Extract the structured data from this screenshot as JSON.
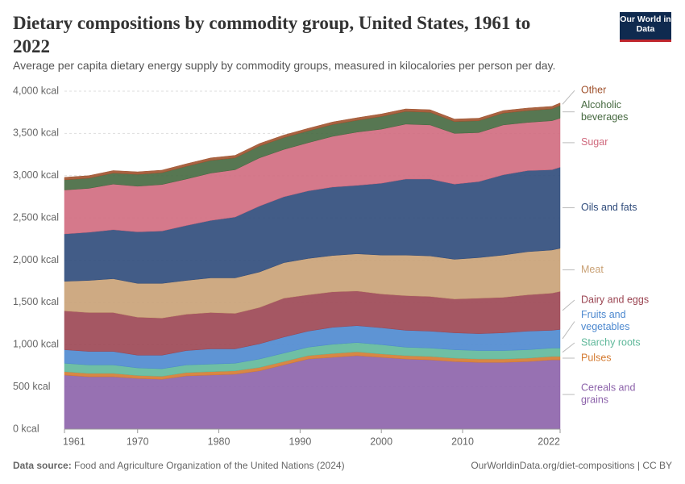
{
  "chart_data": {
    "type": "stacked-area",
    "title": "Dietary compositions by commodity group, United States, 1961 to 2022",
    "subtitle": "Average per capita dietary energy supply by commodity groups, measured in kilocalories per person per day.",
    "logo": "Our World in Data",
    "source_label": "Data source:",
    "source": "Food and Agriculture Organization of the United Nations (2024)",
    "url": "OurWorldinData.org/diet-compositions | CC BY",
    "x": [
      1961,
      1964,
      1967,
      1970,
      1973,
      1976,
      1979,
      1982,
      1985,
      1988,
      1991,
      1994,
      1997,
      2000,
      2003,
      2006,
      2009,
      2012,
      2015,
      2018,
      2021,
      2022
    ],
    "xlim": [
      1961,
      2022
    ],
    "xticks": [
      1961,
      1970,
      1980,
      1990,
      2000,
      2010,
      2022
    ],
    "ylim": [
      0,
      4000
    ],
    "yticks": [
      {
        "value": 0,
        "label": "0 kcal"
      },
      {
        "value": 500,
        "label": "500 kcal"
      },
      {
        "value": 1000,
        "label": "1,000 kcal"
      },
      {
        "value": 1500,
        "label": "1,500 kcal"
      },
      {
        "value": 2000,
        "label": "2,000 kcal"
      },
      {
        "value": 2500,
        "label": "2,500 kcal"
      },
      {
        "value": 3000,
        "label": "3,000 kcal"
      },
      {
        "value": 3500,
        "label": "3,500 kcal"
      },
      {
        "value": 4000,
        "label": "4,000 kcal"
      }
    ],
    "grid": true,
    "series": [
      {
        "name": "Cereals and grains",
        "color": "#8c62aa",
        "values": [
          640,
          620,
          620,
          600,
          590,
          630,
          640,
          650,
          690,
          760,
          830,
          850,
          870,
          850,
          830,
          820,
          800,
          790,
          790,
          800,
          820,
          820
        ]
      },
      {
        "name": "Pulses",
        "color": "#d47a30",
        "values": [
          40,
          40,
          40,
          35,
          35,
          40,
          40,
          40,
          40,
          40,
          40,
          45,
          45,
          40,
          40,
          40,
          40,
          40,
          40,
          40,
          40,
          40
        ]
      },
      {
        "name": "Starchy roots",
        "color": "#5fb89a",
        "values": [
          100,
          100,
          100,
          90,
          90,
          90,
          90,
          90,
          100,
          100,
          100,
          110,
          110,
          110,
          100,
          100,
          100,
          100,
          100,
          100,
          100,
          100
        ]
      },
      {
        "name": "Fruits and vegetables",
        "color": "#4c88cf",
        "values": [
          160,
          160,
          160,
          150,
          160,
          170,
          180,
          170,
          180,
          190,
          190,
          200,
          200,
          200,
          200,
          200,
          200,
          200,
          210,
          220,
          210,
          220
        ]
      },
      {
        "name": "Dairy and eggs",
        "color": "#9b4552",
        "values": [
          460,
          460,
          460,
          450,
          440,
          430,
          430,
          420,
          430,
          460,
          430,
          420,
          410,
          400,
          410,
          410,
          400,
          420,
          420,
          430,
          440,
          450
        ]
      },
      {
        "name": "Meat",
        "color": "#c9a175",
        "values": [
          350,
          380,
          400,
          400,
          410,
          400,
          410,
          420,
          420,
          420,
          430,
          430,
          440,
          460,
          480,
          480,
          470,
          480,
          500,
          510,
          510,
          510
        ]
      },
      {
        "name": "Oils and fats",
        "color": "#2e4a7a",
        "values": [
          560,
          570,
          580,
          610,
          620,
          650,
          680,
          720,
          780,
          780,
          800,
          810,
          810,
          850,
          900,
          910,
          890,
          900,
          950,
          960,
          950,
          960
        ]
      },
      {
        "name": "Sugar",
        "color": "#d06a7e",
        "values": [
          520,
          520,
          540,
          540,
          550,
          550,
          560,
          560,
          570,
          560,
          570,
          600,
          630,
          640,
          650,
          640,
          600,
          580,
          590,
          570,
          580,
          580
        ]
      },
      {
        "name": "Alcoholic beverages",
        "color": "#45683f",
        "values": [
          120,
          120,
          130,
          140,
          140,
          150,
          150,
          140,
          140,
          140,
          140,
          140,
          140,
          150,
          150,
          150,
          140,
          140,
          140,
          140,
          140,
          150
        ]
      },
      {
        "name": "Other",
        "color": "#a0522d",
        "values": [
          30,
          30,
          30,
          30,
          30,
          30,
          30,
          30,
          30,
          30,
          30,
          30,
          30,
          30,
          30,
          30,
          30,
          30,
          30,
          30,
          30,
          30
        ]
      }
    ]
  }
}
